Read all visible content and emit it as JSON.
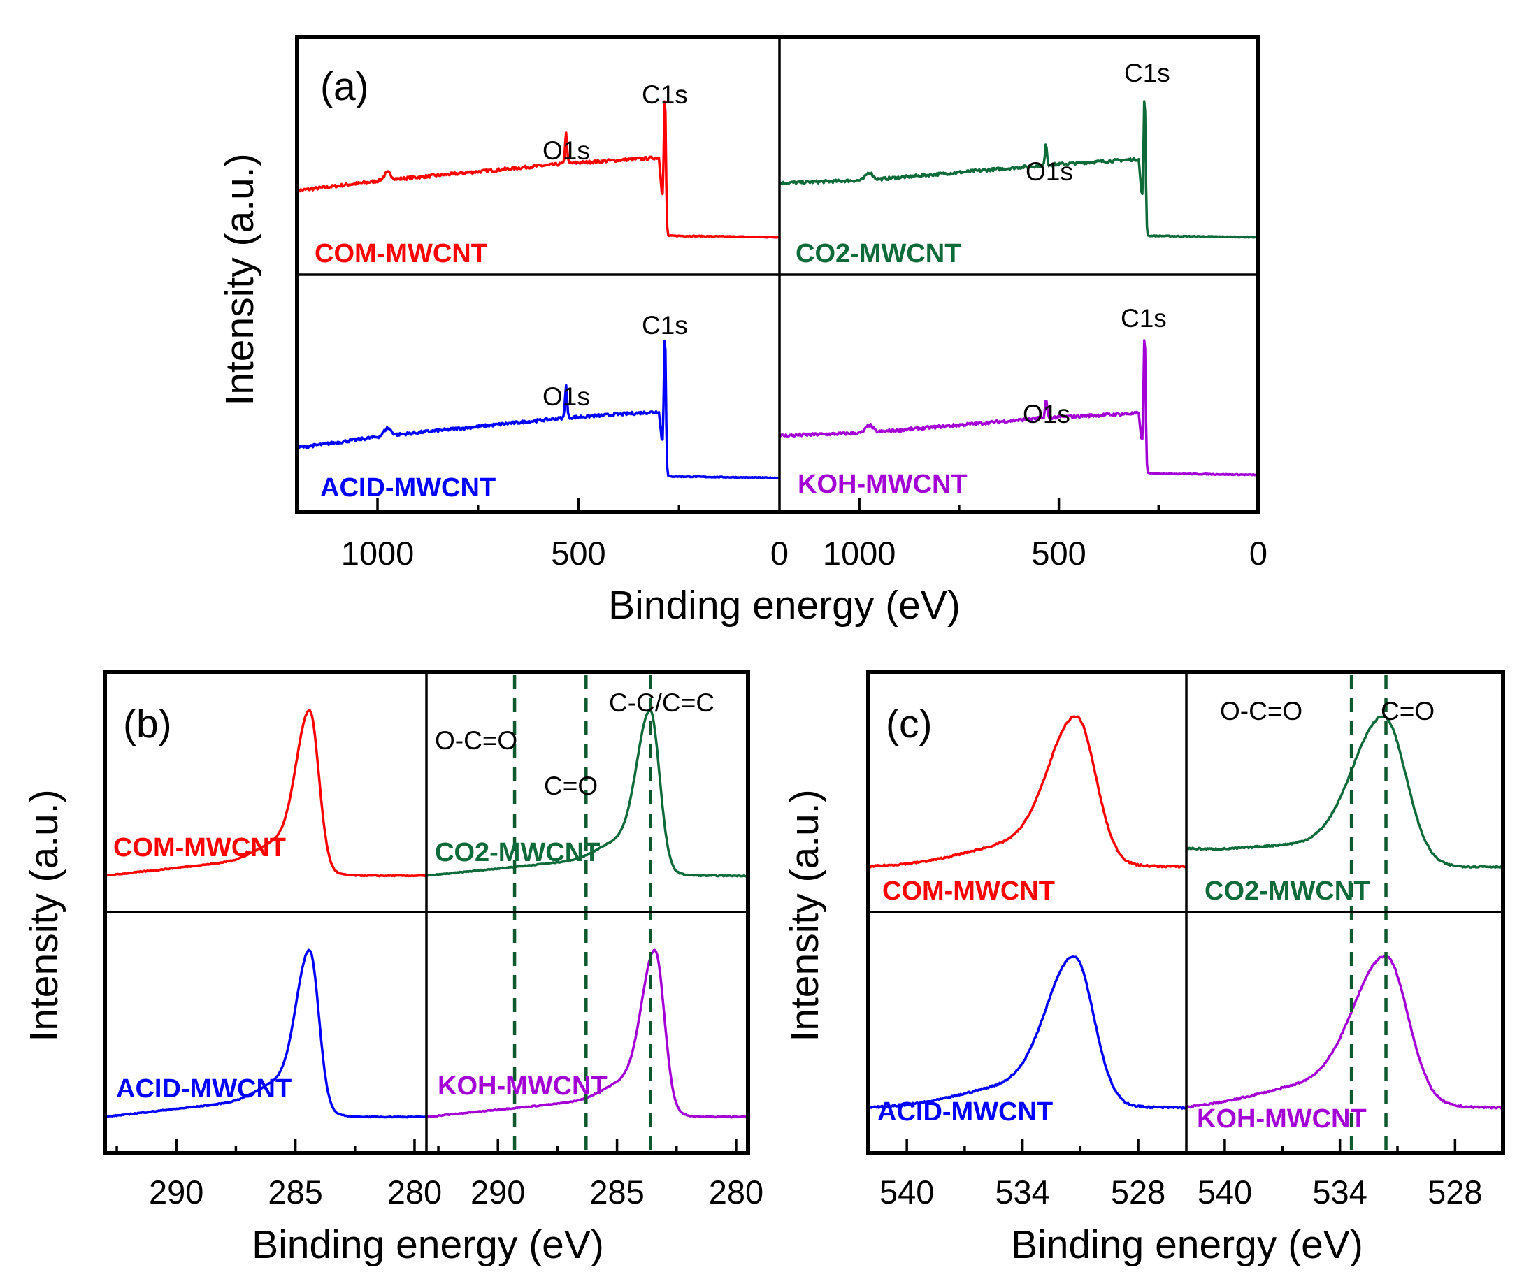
{
  "colors": {
    "com": "#ff0000",
    "co2": "#0e6a38",
    "acid": "#0000ff",
    "koh": "#a300d6",
    "ref_line": "#0e5a2e"
  },
  "chart_data": [
    {
      "panel": "(a)",
      "type": "line",
      "xlabel": "Binding energy (eV)",
      "ylabel": "Intensity (a.u.)",
      "xlim": [
        1200,
        0
      ],
      "x_reversed": true,
      "xticks": [
        1000,
        500,
        0
      ],
      "xtick_labels": [
        "1000",
        "500",
        "0"
      ],
      "subplots": [
        {
          "sample": "COM-MWCNT",
          "color_key": "com",
          "col": 0,
          "row": 0,
          "peaks": [
            {
              "label": "O1s",
              "x": 531
            },
            {
              "label": "C1s",
              "x": 285
            }
          ],
          "baseline": {
            "x": [
              1200,
              980,
              531,
              300,
              284,
              0
            ],
            "y": [
              0.35,
              0.42,
              0.53,
              0.57,
              0.05,
              0.04
            ]
          },
          "peak_heights": {
            "O1s": 0.2,
            "C1s": 1.0
          }
        },
        {
          "sample": "CO2-MWCNT",
          "color_key": "co2",
          "col": 1,
          "row": 0,
          "peaks": [
            {
              "label": "O1s",
              "x": 532
            },
            {
              "label": "C1s",
              "x": 285
            }
          ],
          "baseline": {
            "x": [
              1200,
              980,
              532,
              300,
              284,
              0
            ],
            "y": [
              0.4,
              0.42,
              0.52,
              0.56,
              0.05,
              0.04
            ]
          },
          "peak_heights": {
            "O1s": 0.14,
            "C1s": 1.0
          }
        },
        {
          "sample": "ACID-MWCNT",
          "color_key": "acid",
          "col": 0,
          "row": 1,
          "peaks": [
            {
              "label": "O1s",
              "x": 531
            },
            {
              "label": "C1s",
              "x": 285
            }
          ],
          "baseline": {
            "x": [
              1200,
              980,
              531,
              300,
              284,
              0
            ],
            "y": [
              0.22,
              0.3,
              0.42,
              0.46,
              0.03,
              0.02
            ]
          },
          "peak_heights": {
            "O1s": 0.22,
            "C1s": 1.0
          }
        },
        {
          "sample": "KOH-MWCNT",
          "color_key": "koh",
          "col": 1,
          "row": 1,
          "peaks": [
            {
              "label": "O1s",
              "x": 532
            },
            {
              "label": "C1s",
              "x": 285
            }
          ],
          "baseline": {
            "x": [
              1200,
              980,
              532,
              300,
              284,
              0
            ],
            "y": [
              0.3,
              0.32,
              0.42,
              0.45,
              0.05,
              0.04
            ]
          },
          "peak_heights": {
            "O1s": 0.12,
            "C1s": 1.0
          }
        }
      ]
    },
    {
      "panel": "(b)",
      "type": "line",
      "xlabel": "Binding energy (eV)",
      "ylabel": "Intensity (a.u.)",
      "xlim": [
        293,
        279.5
      ],
      "x_reversed": true,
      "xticks": [
        290,
        285,
        280
      ],
      "xtick_labels": [
        "290",
        "285",
        "280"
      ],
      "reference_lines": [
        {
          "label": "O-C=O",
          "x": 289.3
        },
        {
          "label": "C=O",
          "x": 286.3
        },
        {
          "label": "C-C/C=C",
          "x": 283.6
        }
      ],
      "subplots": [
        {
          "sample": "COM-MWCNT",
          "color_key": "com",
          "col": 0,
          "row": 0,
          "peak_center": 284.4,
          "fwhm": 1.0,
          "base_start": 0.0,
          "base_end": 0.14
        },
        {
          "sample": "CO2-MWCNT",
          "color_key": "co2",
          "col": 1,
          "row": 0,
          "peak_center": 283.6,
          "fwhm": 1.0,
          "base_start": 0.0,
          "base_end": 0.14
        },
        {
          "sample": "ACID-MWCNT",
          "color_key": "acid",
          "col": 0,
          "row": 1,
          "peak_center": 284.4,
          "fwhm": 1.0,
          "base_start": 0.0,
          "base_end": 0.14
        },
        {
          "sample": "KOH-MWCNT",
          "color_key": "koh",
          "col": 1,
          "row": 1,
          "peak_center": 283.4,
          "fwhm": 1.0,
          "base_start": 0.0,
          "base_end": 0.14
        }
      ]
    },
    {
      "panel": "(c)",
      "type": "line",
      "xlabel": "Binding energy (eV)",
      "ylabel": "Intensity (a.u.)",
      "xlim": [
        542,
        525.5
      ],
      "x_reversed": true,
      "xticks": [
        540,
        534,
        528
      ],
      "xtick_labels": [
        "540",
        "534",
        "528"
      ],
      "reference_lines": [
        {
          "label": "O-C=O",
          "x": 533.4
        },
        {
          "label": "C=O",
          "x": 531.6
        }
      ],
      "subplots": [
        {
          "sample": "COM-MWCNT",
          "color_key": "com",
          "col": 0,
          "row": 0,
          "peak_center": 531.2,
          "fwhm": 2.6,
          "base_start": 0.0,
          "base_end": 0.08
        },
        {
          "sample": "CO2-MWCNT",
          "color_key": "co2",
          "col": 1,
          "row": 0,
          "peak_center": 531.7,
          "fwhm": 3.0,
          "base_start": 0.12,
          "base_end": 0.0
        },
        {
          "sample": "ACID-MWCNT",
          "color_key": "acid",
          "col": 0,
          "row": 1,
          "peak_center": 531.3,
          "fwhm": 2.6,
          "base_start": 0.0,
          "base_end": 0.08
        },
        {
          "sample": "KOH-MWCNT",
          "color_key": "koh",
          "col": 1,
          "row": 1,
          "peak_center": 531.6,
          "fwhm": 3.0,
          "base_start": 0.0,
          "base_end": 0.1
        }
      ]
    }
  ]
}
